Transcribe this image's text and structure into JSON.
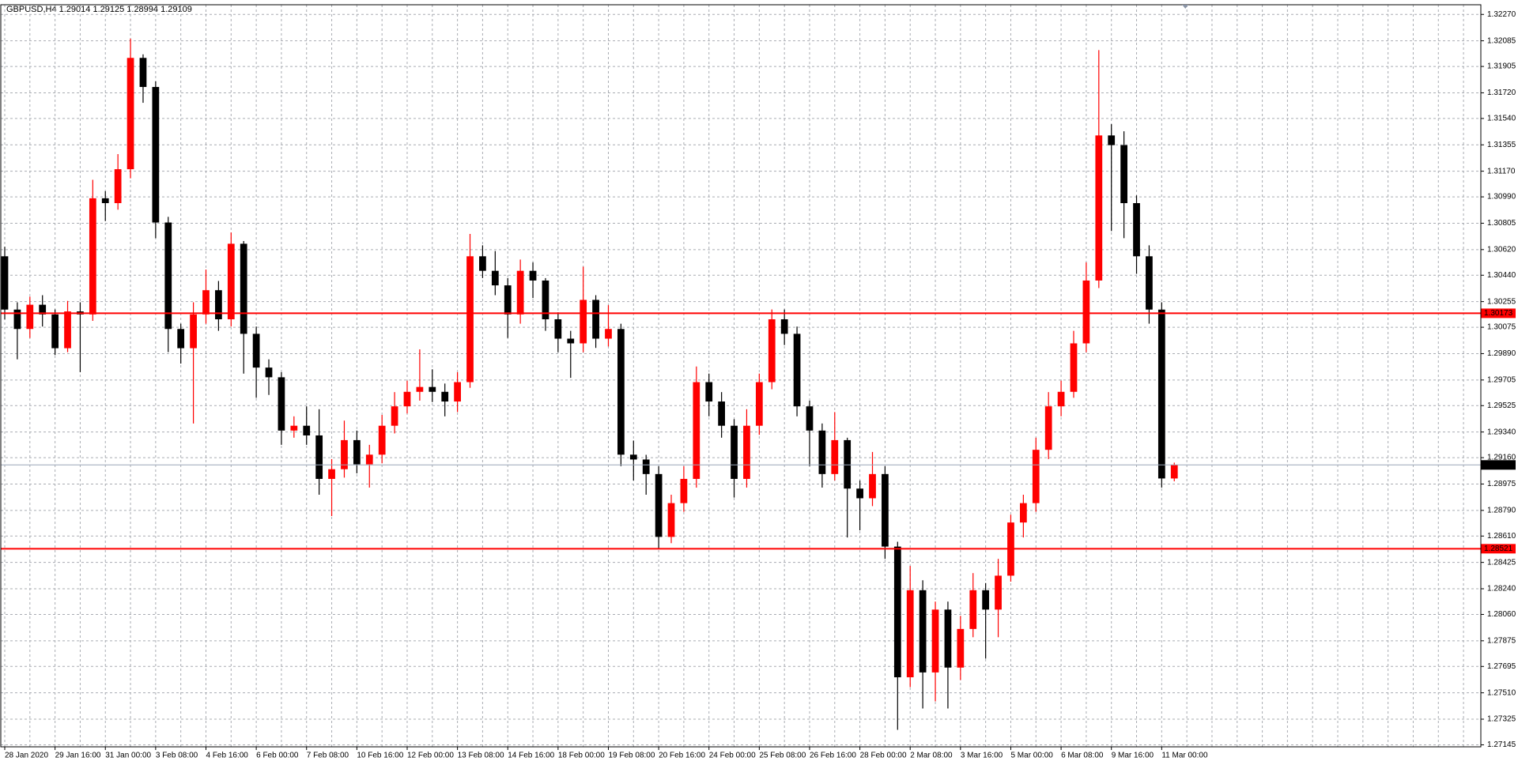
{
  "chart_data": {
    "type": "candlestick",
    "title": "GBPUSD,H4  1.29014 1.29125 1.28994 1.29109",
    "up_color": "#ff0000",
    "down_color": "#000000",
    "grid": true,
    "ylim": [
      1.27131,
      1.32338
    ],
    "yticks": [
      {
        "value": 1.3227,
        "label": "1.32270"
      },
      1.32085,
      1.31905,
      {
        "value": 1.3172,
        "label": "1.31720"
      },
      {
        "value": 1.3154,
        "label": "1.31540"
      },
      1.31355,
      {
        "value": 1.3117,
        "label": "1.31170"
      },
      {
        "value": 1.3099,
        "label": "1.30990"
      },
      1.30805,
      {
        "value": 1.3062,
        "label": "1.30620"
      },
      {
        "value": 1.3044,
        "label": "1.30440"
      },
      1.30255,
      1.30075,
      {
        "value": 1.2989,
        "label": "1.29890"
      },
      1.29705,
      1.29525,
      {
        "value": 1.2934,
        "label": "1.29340"
      },
      {
        "value": 1.2916,
        "label": "1.29160"
      },
      1.28975,
      {
        "value": 1.2879,
        "label": "1.28790"
      },
      {
        "value": 1.2861,
        "label": "1.28610"
      },
      1.28425,
      {
        "value": 1.2824,
        "label": "1.28240"
      },
      {
        "value": 1.2806,
        "label": "1.28060"
      },
      1.27875,
      1.27695,
      {
        "value": 1.2751,
        "label": "1.27510"
      },
      1.27325,
      1.27145
    ],
    "x_labels": [
      "28 Jan 2020",
      "29 Jan 16:00",
      "31 Jan 00:00",
      "3 Feb 08:00",
      "4 Feb 16:00",
      "6 Feb 00:00",
      "7 Feb 08:00",
      "10 Feb 16:00",
      "12 Feb 00:00",
      "13 Feb 08:00",
      "14 Feb 16:00",
      "18 Feb 00:00",
      "19 Feb 08:00",
      "20 Feb 16:00",
      "24 Feb 00:00",
      "25 Feb 08:00",
      "26 Feb 16:00",
      "28 Feb 00:00",
      "2 Mar 08:00",
      "3 Mar 16:00",
      "5 Mar 00:00",
      "6 Mar 08:00",
      "9 Mar 16:00",
      "11 Mar 00:00"
    ],
    "open": [
      1.30573,
      1.30199,
      1.30063,
      1.30233,
      1.30165,
      1.29928,
      1.30186,
      1.30165,
      1.3098,
      1.30946,
      1.31184,
      1.31965,
      1.31761,
      1.3081,
      1.30063,
      1.29928,
      1.30165,
      1.30335,
      1.30131,
      1.30661,
      1.30029,
      1.29792,
      1.29724,
      1.2935,
      1.29384,
      1.29316,
      1.29011,
      1.29079,
      1.29283,
      1.29113,
      1.29181,
      1.29384,
      1.2952,
      1.29622,
      1.29656,
      1.29622,
      1.29554,
      1.2969,
      1.30573,
      1.30471,
      1.30369,
      1.30165,
      1.30471,
      1.30403,
      1.30131,
      1.29995,
      1.29962,
      1.30267,
      1.29995,
      1.30063,
      1.29181,
      1.29147,
      1.29045,
      1.28604,
      1.28841,
      1.29011,
      1.2969,
      1.29554,
      1.29384,
      1.29011,
      1.29384,
      1.2969,
      1.30131,
      1.30029,
      1.2952,
      1.2935,
      1.29045,
      1.29283,
      1.28943,
      1.28875,
      1.29045,
      1.28536,
      1.27619,
      1.2823,
      1.27653,
      1.28094,
      1.27687,
      1.27958,
      1.2823,
      1.28094,
      1.28332,
      1.28705,
      1.28841,
      1.29215,
      1.2952,
      1.29622,
      1.29962,
      1.30403,
      1.31421,
      1.31353,
      1.30946,
      1.30573,
      1.30199,
      1.29014
    ],
    "high": [
      1.3064,
      1.3025,
      1.3029,
      1.303,
      1.302,
      1.3026,
      1.3025,
      1.3111,
      1.3103,
      1.3129,
      1.321,
      1.3199,
      1.318,
      1.3085,
      1.301,
      1.3025,
      1.3048,
      1.304,
      1.3074,
      1.3068,
      1.3008,
      1.2985,
      1.2976,
      1.2945,
      1.2952,
      1.295,
      1.2915,
      1.2942,
      1.2935,
      1.2925,
      1.2946,
      1.2962,
      1.297,
      1.2992,
      1.2978,
      1.2968,
      1.2976,
      1.3073,
      1.3065,
      1.3061,
      1.3042,
      1.3055,
      1.3053,
      1.3042,
      1.3018,
      1.3005,
      1.305,
      1.303,
      1.3023,
      1.301,
      1.2928,
      1.2918,
      1.291,
      1.289,
      1.291,
      1.298,
      1.2975,
      1.2962,
      1.2943,
      1.295,
      1.2975,
      1.302,
      1.302,
      1.3008,
      1.2956,
      1.294,
      1.2948,
      1.293,
      1.29,
      1.292,
      1.291,
      1.2857,
      1.284,
      1.283,
      1.2815,
      1.2815,
      1.2805,
      1.2835,
      1.2828,
      1.2845,
      1.2876,
      1.289,
      1.293,
      1.2962,
      1.297,
      1.3005,
      1.3053,
      1.3202,
      1.315,
      1.3145,
      1.31,
      1.3065,
      1.3025,
      1.29125
    ],
    "low": [
      1.3013,
      1.2985,
      1.3,
      1.3008,
      1.2988,
      1.299,
      1.2976,
      1.3012,
      1.3082,
      1.309,
      1.3112,
      1.3165,
      1.307,
      1.299,
      1.2982,
      1.294,
      1.301,
      1.3005,
      1.3008,
      1.2975,
      1.2958,
      1.296,
      1.2925,
      1.293,
      1.2925,
      1.289,
      1.2875,
      1.2902,
      1.2905,
      1.2895,
      1.2912,
      1.2933,
      1.2947,
      1.2956,
      1.2955,
      1.2945,
      1.2948,
      1.2965,
      1.3042,
      1.303,
      1.3,
      1.301,
      1.3028,
      1.3005,
      1.299,
      1.2972,
      1.299,
      1.2993,
      1.2994,
      1.291,
      1.29,
      1.289,
      1.2852,
      1.2856,
      1.2878,
      1.2895,
      1.2945,
      1.293,
      1.2888,
      1.2895,
      1.2932,
      1.2964,
      1.2995,
      1.2945,
      1.291,
      1.2895,
      1.29,
      1.286,
      1.2865,
      1.2882,
      1.2845,
      1.2725,
      1.2755,
      1.274,
      1.2745,
      1.274,
      1.276,
      1.279,
      1.2775,
      1.279,
      1.2829,
      1.286,
      1.2878,
      1.2915,
      1.2945,
      1.2958,
      1.299,
      1.3035,
      1.3075,
      1.307,
      1.3045,
      1.301,
      1.2895,
      1.28994
    ],
    "close": [
      1.30199,
      1.30063,
      1.30233,
      1.30165,
      1.29928,
      1.30186,
      1.30165,
      1.3098,
      1.30946,
      1.31184,
      1.31965,
      1.31761,
      1.3081,
      1.30063,
      1.29928,
      1.30165,
      1.30335,
      1.30131,
      1.30661,
      1.30029,
      1.29792,
      1.29724,
      1.2935,
      1.29384,
      1.29316,
      1.29011,
      1.29079,
      1.29283,
      1.29113,
      1.29181,
      1.29384,
      1.2952,
      1.29622,
      1.29656,
      1.29622,
      1.29554,
      1.2969,
      1.30573,
      1.30471,
      1.30369,
      1.30165,
      1.30471,
      1.30403,
      1.30131,
      1.29995,
      1.29962,
      1.30267,
      1.29995,
      1.30063,
      1.29181,
      1.29147,
      1.29045,
      1.28604,
      1.28841,
      1.29011,
      1.2969,
      1.29554,
      1.29384,
      1.29011,
      1.29384,
      1.2969,
      1.30131,
      1.30029,
      1.2952,
      1.2935,
      1.29045,
      1.29283,
      1.28943,
      1.28875,
      1.29045,
      1.28536,
      1.27619,
      1.2823,
      1.27653,
      1.28094,
      1.27687,
      1.27958,
      1.2823,
      1.28094,
      1.28332,
      1.28705,
      1.28841,
      1.29215,
      1.2952,
      1.29622,
      1.29962,
      1.30403,
      1.31421,
      1.31353,
      1.30946,
      1.30573,
      1.30199,
      1.29014,
      1.29109
    ],
    "hlines": [
      {
        "value": 1.30173,
        "color": "#ff0000",
        "text_color": "#ffffff"
      },
      {
        "value": 1.28521,
        "color": "#ff0000",
        "text_color": "#ffffff"
      },
      {
        "value": 1.29109,
        "color": "#000000",
        "line_color": "#9aa6b8",
        "text_color": "#ffffff"
      }
    ]
  }
}
